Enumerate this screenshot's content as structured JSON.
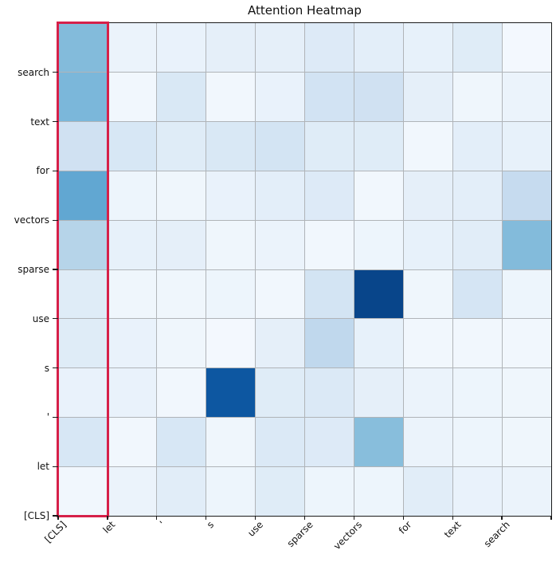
{
  "title": "Attention Heatmap",
  "colors": {
    "background": "#ffffff",
    "grid_line": "#b0b4b8",
    "spine": "#1a1a1a",
    "highlight_box": "#d62049",
    "colormap_name": "Blues",
    "blues_anchors": [
      "#f7fbff",
      "#deebf7",
      "#c6dbef",
      "#9ecae1",
      "#6baed6",
      "#4292c6",
      "#2171b5",
      "#08519c",
      "#08306b"
    ]
  },
  "chart_data": {
    "type": "heatmap",
    "title": "Attention Heatmap",
    "colormap": "Blues",
    "value_range": [
      0,
      1
    ],
    "grid": true,
    "highlighted_column": "[CLS]",
    "x_tick_labels": [
      "[CLS]",
      "let",
      "'",
      "s",
      "use",
      "sparse",
      "vectors",
      "for",
      "text",
      "search"
    ],
    "y_tick_labels": [
      "search",
      "text",
      "for",
      "vectors",
      "sparse",
      "use",
      "s",
      "'",
      "let",
      "[CLS]"
    ],
    "matrix": [
      [
        0.44,
        0.06,
        0.07,
        0.09,
        0.09,
        0.13,
        0.1,
        0.08,
        0.12,
        0.02
      ],
      [
        0.46,
        0.03,
        0.15,
        0.03,
        0.07,
        0.19,
        0.2,
        0.09,
        0.04,
        0.06
      ],
      [
        0.2,
        0.16,
        0.12,
        0.15,
        0.18,
        0.12,
        0.12,
        0.03,
        0.1,
        0.08
      ],
      [
        0.53,
        0.05,
        0.04,
        0.07,
        0.1,
        0.13,
        0.03,
        0.09,
        0.1,
        0.25
      ],
      [
        0.3,
        0.08,
        0.09,
        0.04,
        0.06,
        0.03,
        0.05,
        0.08,
        0.11,
        0.44
      ],
      [
        0.12,
        0.04,
        0.04,
        0.05,
        0.03,
        0.18,
        0.92,
        0.04,
        0.17,
        0.05
      ],
      [
        0.12,
        0.07,
        0.04,
        0.02,
        0.09,
        0.27,
        0.08,
        0.03,
        0.03,
        0.03
      ],
      [
        0.07,
        0.07,
        0.03,
        0.85,
        0.12,
        0.14,
        0.09,
        0.06,
        0.05,
        0.04
      ],
      [
        0.16,
        0.03,
        0.16,
        0.04,
        0.14,
        0.13,
        0.43,
        0.06,
        0.05,
        0.04
      ],
      [
        0.03,
        0.06,
        0.11,
        0.05,
        0.12,
        0.05,
        0.05,
        0.11,
        0.07,
        0.06
      ]
    ]
  }
}
